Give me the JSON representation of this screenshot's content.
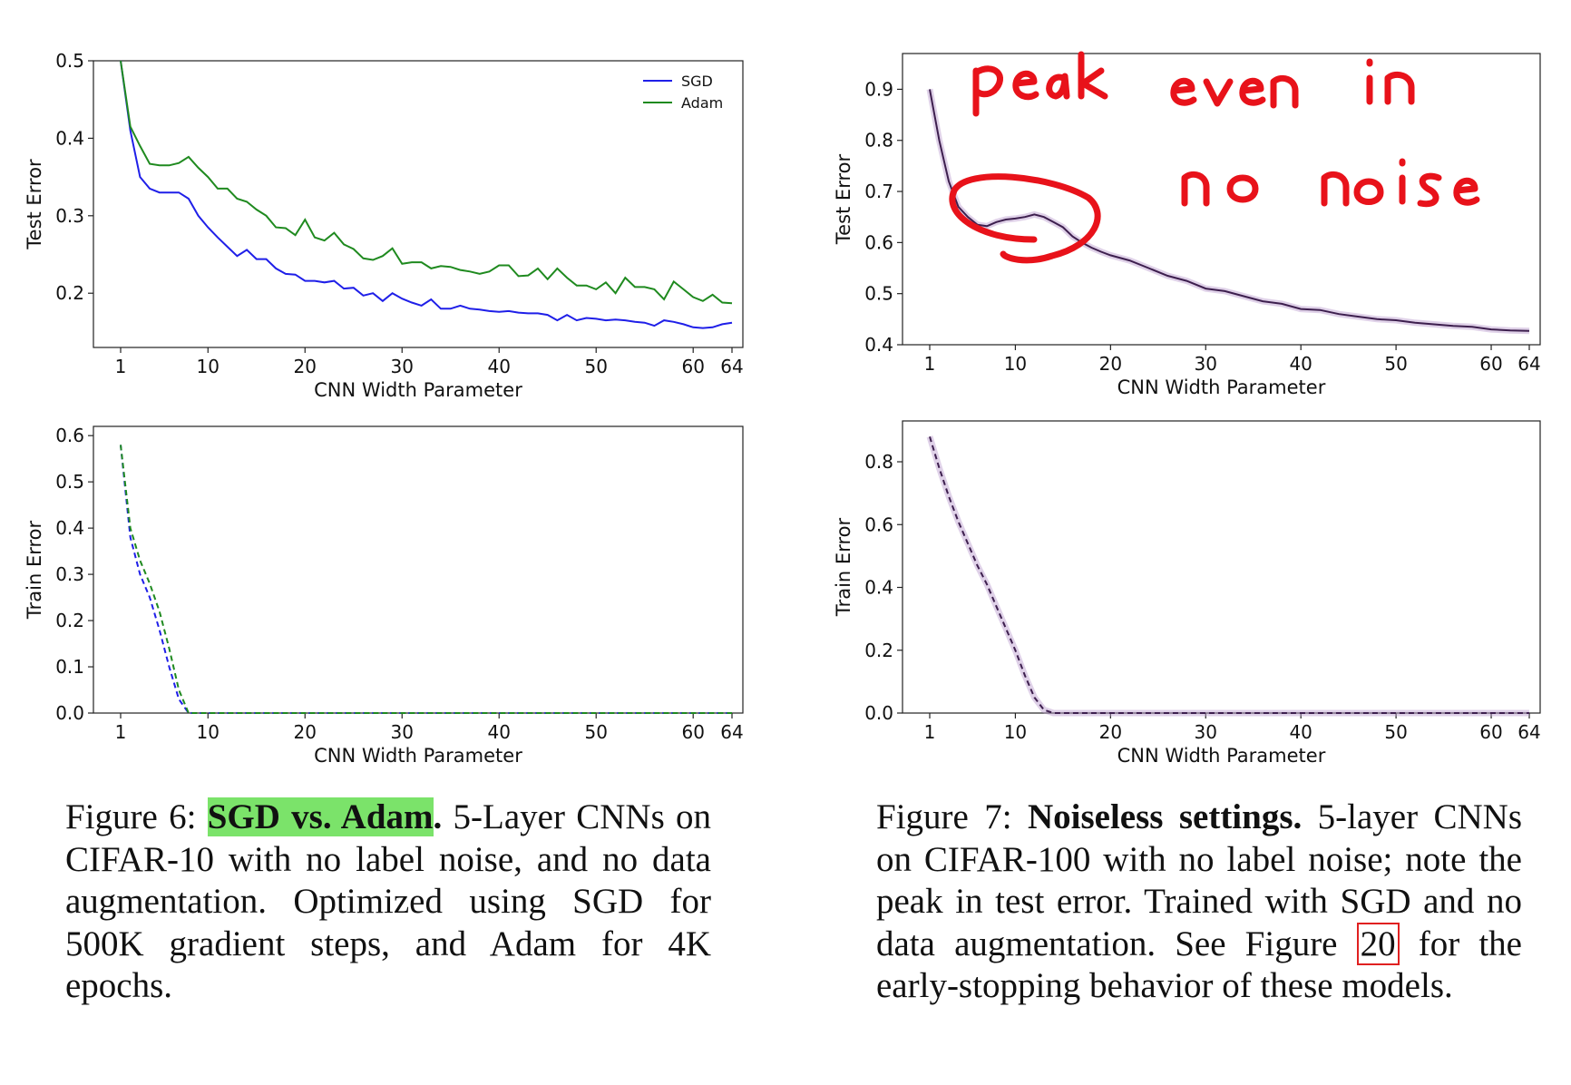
{
  "figure6": {
    "number": "Figure 6:",
    "title": "SGD vs. Adam",
    "title_period": ".",
    "caption": "5-Layer CNNs on CIFAR-10 with no label noise, and no data augmentation. Optimized using SGD for 500K gradient steps, and Adam for 4K epochs."
  },
  "figure7": {
    "number": "Figure 7:",
    "title": "Noiseless settings.",
    "caption_a": "5-layer CNNs on CIFAR-100 with no label noise; note the peak in test error. Trained with SGD and no data augmentation. See Figure",
    "ref": "20",
    "caption_b": "for the early-stopping behavior of these models."
  },
  "annotation": {
    "line1": "peak even in",
    "line2": "no noise"
  },
  "colors": {
    "sgd": "#1f1fe8",
    "adam": "#1f8a1f",
    "purple": "#3d1f4e",
    "annotation": "#e8121a",
    "highlight": "#7be36a"
  },
  "chart_data": [
    {
      "id": "fig6-test",
      "type": "line",
      "xlabel": "CNN Width Parameter",
      "ylabel": "Test Error",
      "xlim": [
        1,
        64
      ],
      "ylim": [
        0.13,
        0.5
      ],
      "xticks": [
        1,
        10,
        20,
        30,
        40,
        50,
        60,
        64
      ],
      "yticks": [
        0.2,
        0.3,
        0.4,
        0.5
      ],
      "ytick_labels": [
        "0.2",
        "0.3",
        "0.4",
        "0.5"
      ],
      "legend": "top-right",
      "series": [
        {
          "name": "SGD",
          "color": "#1f1fe8",
          "style": "solid",
          "x": [
            1,
            2,
            3,
            4,
            5,
            6,
            7,
            8,
            9,
            10,
            11,
            12,
            13,
            14,
            15,
            16,
            17,
            18,
            19,
            20,
            21,
            22,
            23,
            24,
            25,
            26,
            27,
            28,
            29,
            30,
            31,
            32,
            33,
            34,
            35,
            36,
            37,
            38,
            39,
            40,
            41,
            42,
            43,
            44,
            45,
            46,
            47,
            48,
            49,
            50,
            51,
            52,
            53,
            54,
            55,
            56,
            57,
            58,
            59,
            60,
            61,
            62,
            63,
            64
          ],
          "y": [
            0.5,
            0.41,
            0.35,
            0.335,
            0.33,
            0.33,
            0.33,
            0.322,
            0.3,
            0.285,
            0.272,
            0.26,
            0.248,
            0.256,
            0.244,
            0.244,
            0.232,
            0.225,
            0.224,
            0.216,
            0.216,
            0.214,
            0.216,
            0.206,
            0.207,
            0.197,
            0.2,
            0.19,
            0.2,
            0.193,
            0.188,
            0.184,
            0.192,
            0.18,
            0.18,
            0.184,
            0.18,
            0.179,
            0.177,
            0.176,
            0.177,
            0.175,
            0.174,
            0.174,
            0.172,
            0.165,
            0.172,
            0.165,
            0.168,
            0.167,
            0.165,
            0.166,
            0.165,
            0.163,
            0.162,
            0.158,
            0.165,
            0.163,
            0.16,
            0.156,
            0.155,
            0.156,
            0.16,
            0.162
          ]
        },
        {
          "name": "Adam",
          "color": "#1f8a1f",
          "style": "solid",
          "x": [
            1,
            2,
            3,
            4,
            5,
            6,
            7,
            8,
            9,
            10,
            11,
            12,
            13,
            14,
            15,
            16,
            17,
            18,
            19,
            20,
            21,
            22,
            23,
            24,
            25,
            26,
            27,
            28,
            29,
            30,
            31,
            32,
            33,
            34,
            35,
            36,
            37,
            38,
            39,
            40,
            41,
            42,
            43,
            44,
            45,
            46,
            47,
            48,
            49,
            50,
            51,
            52,
            53,
            54,
            55,
            56,
            57,
            58,
            59,
            60,
            61,
            62,
            63,
            64
          ],
          "y": [
            0.5,
            0.415,
            0.39,
            0.367,
            0.365,
            0.365,
            0.368,
            0.376,
            0.362,
            0.35,
            0.335,
            0.335,
            0.322,
            0.318,
            0.308,
            0.3,
            0.285,
            0.284,
            0.275,
            0.295,
            0.272,
            0.268,
            0.278,
            0.263,
            0.257,
            0.245,
            0.243,
            0.248,
            0.258,
            0.238,
            0.24,
            0.24,
            0.232,
            0.235,
            0.234,
            0.23,
            0.228,
            0.225,
            0.228,
            0.236,
            0.236,
            0.222,
            0.223,
            0.232,
            0.218,
            0.232,
            0.22,
            0.21,
            0.21,
            0.205,
            0.214,
            0.2,
            0.22,
            0.208,
            0.208,
            0.205,
            0.192,
            0.215,
            0.205,
            0.195,
            0.19,
            0.198,
            0.188,
            0.187
          ]
        }
      ]
    },
    {
      "id": "fig6-train",
      "type": "line",
      "xlabel": "CNN Width Parameter",
      "ylabel": "Train Error",
      "xlim": [
        1,
        64
      ],
      "ylim": [
        0,
        0.62
      ],
      "xticks": [
        1,
        10,
        20,
        30,
        40,
        50,
        60,
        64
      ],
      "yticks": [
        0,
        0.1,
        0.2,
        0.3,
        0.4,
        0.5,
        0.6
      ],
      "ytick_labels": [
        "0.0",
        "0.1",
        "0.2",
        "0.3",
        "0.4",
        "0.5",
        "0.6"
      ],
      "series": [
        {
          "name": "SGD",
          "color": "#1f1fe8",
          "style": "dashed",
          "x": [
            1,
            2,
            3,
            4,
            5,
            6,
            7,
            8,
            64
          ],
          "y": [
            0.58,
            0.38,
            0.3,
            0.25,
            0.18,
            0.1,
            0.03,
            0.0,
            0.0
          ]
        },
        {
          "name": "Adam",
          "color": "#1f8a1f",
          "style": "dashed",
          "x": [
            1,
            2,
            3,
            4,
            5,
            6,
            7,
            8,
            64
          ],
          "y": [
            0.58,
            0.4,
            0.33,
            0.28,
            0.22,
            0.14,
            0.05,
            0.0,
            0.0
          ]
        }
      ]
    },
    {
      "id": "fig7-test",
      "type": "line",
      "xlabel": "CNN Width Parameter",
      "ylabel": "Test Error",
      "xlim": [
        1,
        64
      ],
      "ylim": [
        0.4,
        0.97
      ],
      "xticks": [
        1,
        10,
        20,
        30,
        40,
        50,
        60,
        64
      ],
      "yticks": [
        0.4,
        0.5,
        0.6,
        0.7,
        0.8,
        0.9
      ],
      "ytick_labels": [
        "0.4",
        "0.5",
        "0.6",
        "0.7",
        "0.8",
        "0.9"
      ],
      "series": [
        {
          "color": "#3d1f4e",
          "style": "solid",
          "x": [
            1,
            2,
            3,
            4,
            5,
            6,
            7,
            8,
            9,
            10,
            11,
            12,
            13,
            14,
            15,
            16,
            17,
            18,
            19,
            20,
            22,
            24,
            26,
            28,
            30,
            32,
            34,
            36,
            38,
            40,
            42,
            44,
            46,
            48,
            50,
            52,
            54,
            56,
            58,
            60,
            62,
            64
          ],
          "y": [
            0.9,
            0.8,
            0.72,
            0.67,
            0.65,
            0.635,
            0.632,
            0.64,
            0.645,
            0.647,
            0.65,
            0.655,
            0.65,
            0.64,
            0.63,
            0.612,
            0.6,
            0.59,
            0.582,
            0.575,
            0.565,
            0.55,
            0.535,
            0.525,
            0.51,
            0.505,
            0.495,
            0.485,
            0.48,
            0.47,
            0.468,
            0.46,
            0.455,
            0.45,
            0.448,
            0.443,
            0.44,
            0.437,
            0.435,
            0.43,
            0.428,
            0.427
          ]
        }
      ]
    },
    {
      "id": "fig7-train",
      "type": "line",
      "xlabel": "CNN Width Parameter",
      "ylabel": "Train Error",
      "xlim": [
        1,
        64
      ],
      "ylim": [
        0,
        0.93
      ],
      "xticks": [
        1,
        10,
        20,
        30,
        40,
        50,
        60,
        64
      ],
      "yticks": [
        0,
        0.2,
        0.4,
        0.6,
        0.8
      ],
      "ytick_labels": [
        "0.0",
        "0.2",
        "0.4",
        "0.6",
        "0.8"
      ],
      "series": [
        {
          "color": "#3d1f4e",
          "style": "dashed",
          "x": [
            1,
            2,
            3,
            4,
            5,
            6,
            7,
            8,
            9,
            10,
            11,
            12,
            13,
            14,
            64
          ],
          "y": [
            0.88,
            0.78,
            0.69,
            0.61,
            0.54,
            0.47,
            0.41,
            0.34,
            0.27,
            0.2,
            0.12,
            0.05,
            0.01,
            0.0,
            0.0
          ]
        }
      ]
    }
  ]
}
